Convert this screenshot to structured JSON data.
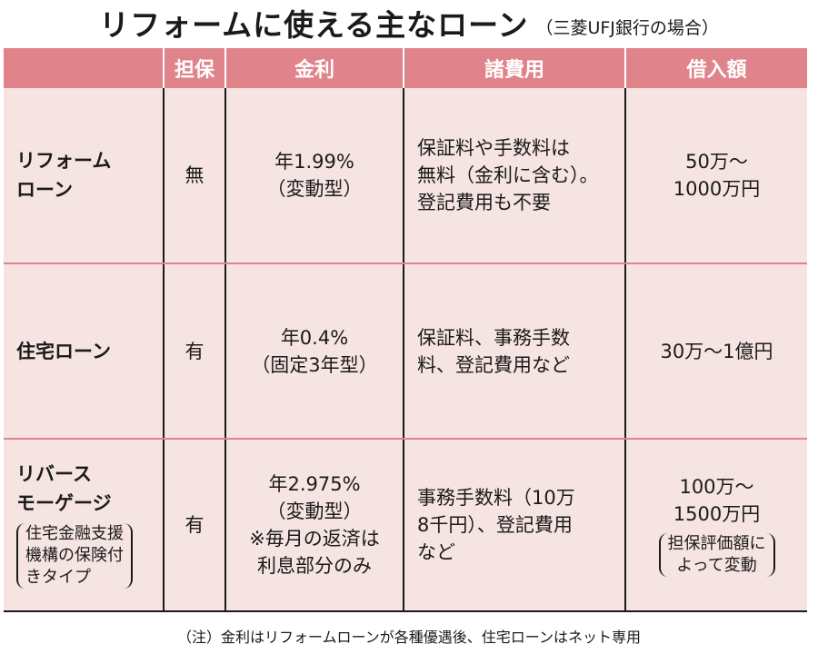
{
  "title": {
    "main": "リフォームに使える主なローン",
    "sub": "（三菱UFJ銀行の場合）"
  },
  "table": {
    "headers": [
      "",
      "担保",
      "金利",
      "諸費用",
      "借入額"
    ],
    "rows": [
      {
        "name": "リフォーム\nローン",
        "name_note": "",
        "collateral": "無",
        "rate": "年1.99%\n（変動型）",
        "costs": "保証料や手数料は\n無料（金利に含む）。\n登記費用も不要",
        "amount": "50万～\n1000万円",
        "amount_note": ""
      },
      {
        "name": "住宅ローン",
        "name_note": "",
        "collateral": "有",
        "rate": "年0.4%\n（固定3年型）",
        "costs": "保証料、事務手数\n料、登記費用など",
        "amount": "30万～1億円",
        "amount_note": ""
      },
      {
        "name": "リバース\nモーゲージ",
        "name_note": "住宅金融支援\n機構の保険付\nきタイプ",
        "collateral": "有",
        "rate": "年2.975%\n（変動型）\n※毎月の返済は\n利息部分のみ",
        "costs": "事務手数料（10万\n8千円）、登記費用\nなど",
        "amount": "100万～\n1500万円",
        "amount_note": "担保評価額に\nよって変動"
      }
    ]
  },
  "note": "（注）金利はリフォームローンが各種優遇後、住宅ローンはネット専用",
  "colors": {
    "header_bg": "#e0838b",
    "cell_bg": "#f6e4e2",
    "row_divider": "#e0838b"
  }
}
